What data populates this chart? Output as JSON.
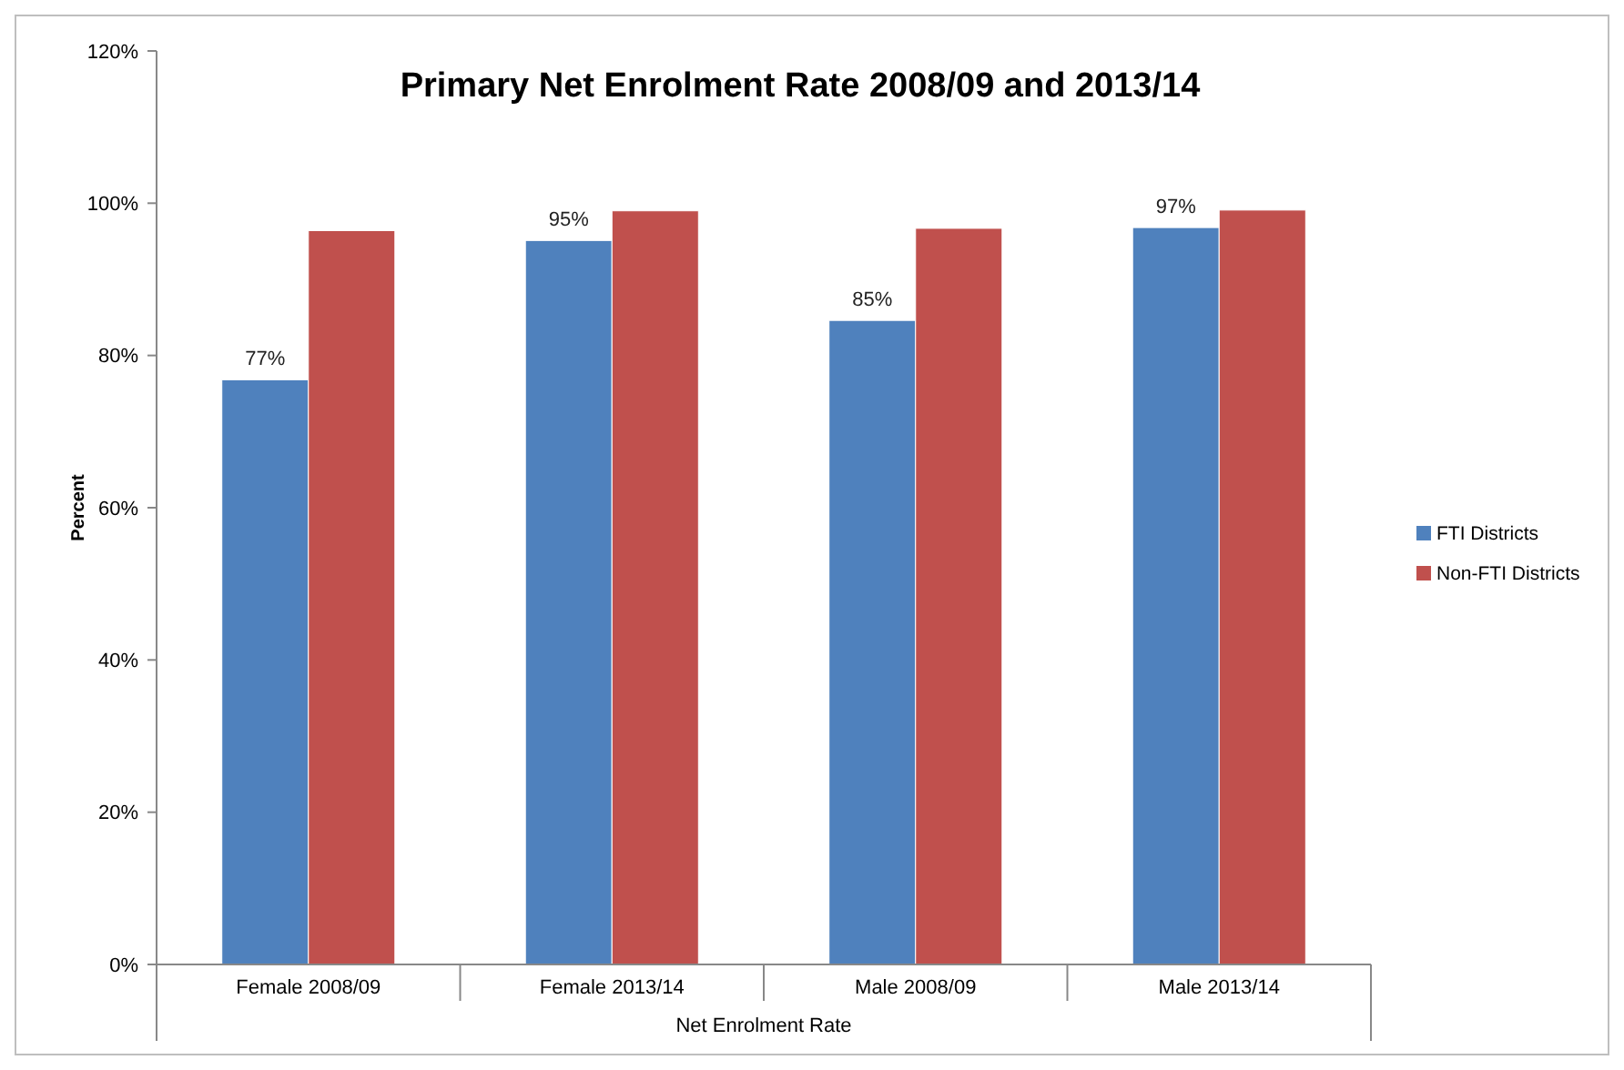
{
  "chart_data": {
    "type": "bar",
    "title": "Primary Net Enrolment Rate 2008/09 and 2013/14",
    "xlabel": "Net Enrolment Rate",
    "ylabel": "Percent",
    "categories": [
      "Female 2008/09",
      "Female 2013/14",
      "Male 2008/09",
      "Male 2013/14"
    ],
    "series": [
      {
        "name": "FTI Districts",
        "color": "#4f81bd",
        "values": [
          76.8,
          95.1,
          84.6,
          96.8
        ],
        "value_labels": [
          "77%",
          "95%",
          "85%",
          "97%"
        ]
      },
      {
        "name": "Non-FTI Districts",
        "color": "#c0504d",
        "values": [
          96.4,
          99.0,
          96.7,
          99.1
        ]
      }
    ],
    "ylim": [
      0,
      120
    ],
    "yticks": [
      {
        "value": 0,
        "label": "0%"
      },
      {
        "value": 20,
        "label": "20%"
      },
      {
        "value": 40,
        "label": "40%"
      },
      {
        "value": 60,
        "label": "60%"
      },
      {
        "value": 80,
        "label": "80%"
      },
      {
        "value": 100,
        "label": "100%"
      },
      {
        "value": 120,
        "label": "120%"
      }
    ],
    "legend": "right"
  }
}
